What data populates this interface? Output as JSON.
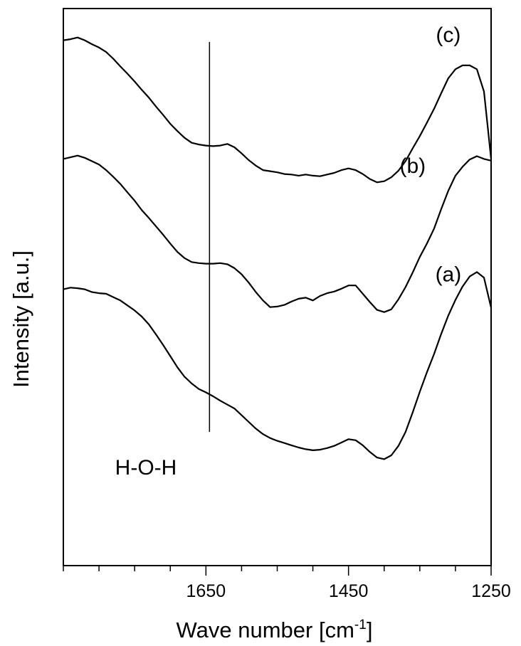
{
  "chart_data": {
    "type": "line",
    "title": "",
    "xlabel": "Wave number [cm",
    "xlabel_sup": "-1",
    "xlabel_end": "]",
    "ylabel": "Intensity [a.u.]",
    "xlim": [
      1850,
      1250
    ],
    "x_reversed": true,
    "ylim": [
      0,
      100
    ],
    "y_ticks_shown": false,
    "grid": false,
    "legend": "none",
    "x_ticks": [
      1650,
      1450,
      1250
    ],
    "x_minor_step": 50,
    "line_color": "#000000",
    "annotation": {
      "label": "H-O-H",
      "x": 1645,
      "y_from": 24,
      "y_to": 94
    },
    "series": [
      {
        "name": "(c)",
        "label_pos": [
          1310,
          94
        ],
        "x": [
          1850,
          1840,
          1830,
          1820,
          1810,
          1800,
          1790,
          1780,
          1770,
          1760,
          1750,
          1740,
          1730,
          1720,
          1710,
          1700,
          1690,
          1680,
          1670,
          1660,
          1650,
          1640,
          1630,
          1620,
          1610,
          1600,
          1590,
          1580,
          1570,
          1560,
          1550,
          1540,
          1530,
          1520,
          1510,
          1500,
          1490,
          1480,
          1470,
          1460,
          1450,
          1440,
          1430,
          1420,
          1410,
          1400,
          1390,
          1380,
          1370,
          1360,
          1350,
          1340,
          1330,
          1320,
          1310,
          1300,
          1290,
          1280,
          1270,
          1260,
          1250
        ],
        "y": [
          94.3,
          94.5,
          94.8,
          94.3,
          93.6,
          93.0,
          92.2,
          91.0,
          89.6,
          88.3,
          86.9,
          85.4,
          84.0,
          82.4,
          80.9,
          79.3,
          78.0,
          76.8,
          75.9,
          75.6,
          75.4,
          75.3,
          75.4,
          75.7,
          75.1,
          74.0,
          72.8,
          71.8,
          71.0,
          70.8,
          70.6,
          70.3,
          70.2,
          70.0,
          70.2,
          70.0,
          69.9,
          70.2,
          70.5,
          71.0,
          71.3,
          71.0,
          70.3,
          69.4,
          68.8,
          69.0,
          69.7,
          70.9,
          72.6,
          74.9,
          77.1,
          79.5,
          82.0,
          84.8,
          87.5,
          89.1,
          89.8,
          89.8,
          89.1,
          85.1,
          73.0
        ]
      },
      {
        "name": "(b)",
        "label_pos": [
          1360,
          70.5
        ],
        "x": [
          1850,
          1840,
          1830,
          1820,
          1810,
          1800,
          1790,
          1780,
          1770,
          1760,
          1750,
          1740,
          1730,
          1720,
          1710,
          1700,
          1690,
          1680,
          1670,
          1660,
          1650,
          1640,
          1630,
          1620,
          1610,
          1600,
          1590,
          1580,
          1570,
          1560,
          1550,
          1540,
          1530,
          1520,
          1510,
          1500,
          1490,
          1480,
          1470,
          1460,
          1450,
          1440,
          1430,
          1420,
          1410,
          1400,
          1390,
          1380,
          1370,
          1360,
          1350,
          1340,
          1330,
          1320,
          1310,
          1300,
          1290,
          1280,
          1270,
          1260,
          1250
        ],
        "y": [
          73.0,
          73.3,
          73.6,
          73.2,
          72.6,
          72.0,
          71.0,
          69.8,
          68.5,
          67.0,
          65.5,
          63.8,
          62.4,
          60.9,
          59.4,
          57.8,
          56.3,
          55.2,
          54.5,
          54.3,
          54.2,
          54.2,
          54.3,
          54.1,
          53.4,
          52.3,
          50.8,
          49.1,
          47.6,
          46.4,
          46.5,
          46.8,
          47.4,
          47.9,
          48.1,
          47.6,
          48.4,
          48.9,
          49.2,
          49.7,
          50.3,
          50.3,
          48.8,
          47.3,
          45.9,
          45.5,
          46.0,
          47.8,
          50.0,
          52.6,
          55.4,
          57.8,
          60.5,
          64.0,
          67.3,
          70.0,
          71.6,
          72.9,
          73.5,
          73.0,
          72.7
        ]
      },
      {
        "name": "(a)",
        "label_pos": [
          1310,
          51
        ],
        "x": [
          1850,
          1840,
          1830,
          1820,
          1810,
          1800,
          1790,
          1780,
          1770,
          1760,
          1750,
          1740,
          1730,
          1720,
          1710,
          1700,
          1690,
          1680,
          1670,
          1660,
          1650,
          1640,
          1630,
          1620,
          1610,
          1600,
          1590,
          1580,
          1570,
          1560,
          1550,
          1540,
          1530,
          1520,
          1510,
          1500,
          1490,
          1480,
          1470,
          1460,
          1450,
          1440,
          1430,
          1420,
          1410,
          1400,
          1390,
          1380,
          1370,
          1360,
          1350,
          1340,
          1330,
          1320,
          1310,
          1300,
          1290,
          1280,
          1270,
          1260,
          1250
        ],
        "y": [
          49.6,
          49.9,
          49.8,
          49.6,
          49.1,
          48.9,
          48.8,
          48.2,
          47.6,
          46.7,
          45.8,
          44.7,
          43.3,
          41.5,
          39.6,
          37.6,
          35.6,
          33.9,
          32.7,
          31.7,
          31.1,
          30.4,
          29.6,
          28.9,
          28.2,
          27.0,
          25.8,
          24.6,
          23.6,
          22.9,
          22.4,
          22.0,
          21.6,
          21.2,
          20.9,
          20.7,
          20.8,
          21.1,
          21.5,
          22.1,
          22.7,
          22.5,
          21.6,
          20.4,
          19.4,
          19.1,
          19.8,
          21.5,
          24.0,
          27.5,
          31.2,
          34.7,
          38.0,
          41.6,
          44.9,
          47.7,
          50.1,
          51.9,
          52.7,
          51.7,
          46.3
        ]
      }
    ]
  }
}
